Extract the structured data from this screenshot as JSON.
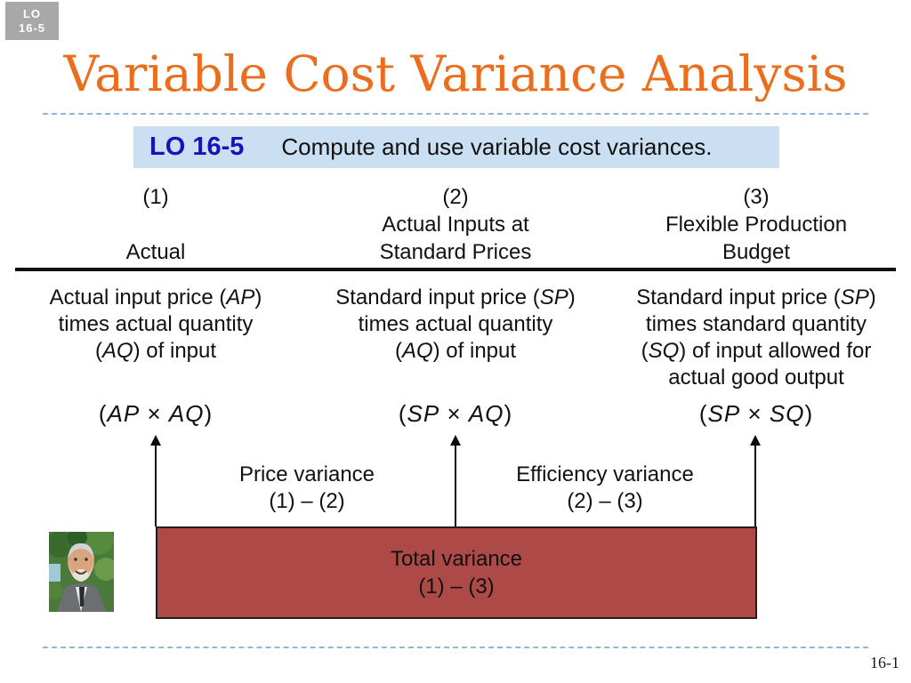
{
  "slide": {
    "badge": {
      "line1": "LO",
      "line2": "16-5"
    },
    "title": "Variable Cost Variance Analysis",
    "lo_banner": {
      "code": "LO 16-5",
      "text": "Compute and use variable cost variances."
    },
    "page_number": "16-1"
  },
  "columns": [
    {
      "number": "(1)",
      "header_lines": [
        "",
        "Actual"
      ],
      "description": [
        "Actual input price (*AP*)",
        "times actual quantity",
        "(*AQ*) of input"
      ],
      "formula": "(*AP* × *AQ*)"
    },
    {
      "number": "(2)",
      "header_lines": [
        "Actual Inputs at",
        "Standard Prices"
      ],
      "description": [
        "Standard input price (*SP*)",
        "times actual quantity",
        "(*AQ*) of input"
      ],
      "formula": "(*SP* × *AQ*)"
    },
    {
      "number": "(3)",
      "header_lines": [
        "Flexible Production",
        "Budget"
      ],
      "description": [
        "Standard input price (*SP*)",
        "times standard quantity",
        "(*SQ*) of input allowed for",
        "actual good output"
      ],
      "formula": "(*SP* × *SQ*)"
    }
  ],
  "variances": {
    "price": {
      "label": "Price variance",
      "formula": "(1) – (2)"
    },
    "efficiency": {
      "label": "Efficiency variance",
      "formula": "(2) – (3)"
    },
    "total": {
      "label": "Total variance",
      "formula": "(1) – (3)"
    }
  },
  "icons": {
    "photo": "instructor-portrait-photo"
  },
  "colors": {
    "title_orange": "#eb6e1e",
    "banner_bg": "#cbdff2",
    "banner_code_blue": "#1414b8",
    "badge_gray": "#a8a8a8",
    "total_box_red": "#ad4a47",
    "dashed_line_blue": "#93b5d9"
  }
}
